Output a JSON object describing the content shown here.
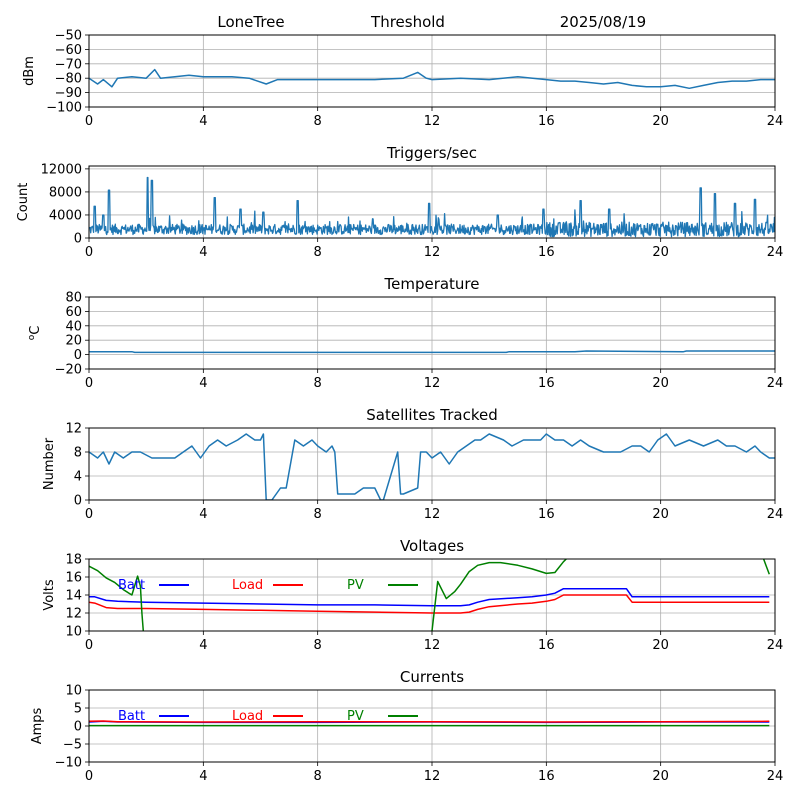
{
  "header": {
    "station": "LoneTree",
    "mode": "Threshold",
    "date": "2025/08/19"
  },
  "chart_data": [
    {
      "id": "signal",
      "type": "line",
      "title": "",
      "ylabel": "dBm",
      "xlim": [
        0,
        24
      ],
      "ylim": [
        -100,
        -50
      ],
      "xticks": [
        0,
        4,
        8,
        12,
        16,
        20,
        24
      ],
      "yticks": [
        -100,
        -90,
        -80,
        -70,
        -60,
        -50
      ],
      "grid": true,
      "series": [
        {
          "color": "#1f77b4",
          "x": [
            0,
            0.3,
            0.5,
            0.8,
            1.0,
            1.5,
            2.0,
            2.3,
            2.5,
            3.0,
            3.5,
            4.0,
            5.0,
            5.6,
            6.2,
            6.6,
            7.0,
            8.0,
            9.0,
            10.0,
            11.0,
            11.5,
            11.8,
            12.0,
            13.0,
            14.0,
            15.0,
            16.0,
            16.5,
            17.0,
            17.5,
            18.0,
            18.5,
            19.0,
            19.5,
            20.0,
            20.5,
            21.0,
            21.5,
            22.0,
            22.5,
            23.0,
            23.5,
            24.0
          ],
          "y": [
            -80,
            -84,
            -81,
            -86,
            -80,
            -79,
            -80,
            -74,
            -80,
            -79,
            -78,
            -79,
            -79,
            -80,
            -84,
            -81,
            -81,
            -81,
            -81,
            -81,
            -80,
            -76,
            -80,
            -81,
            -80,
            -81,
            -79,
            -81,
            -82,
            -82,
            -83,
            -84,
            -83,
            -85,
            -86,
            -86,
            -85,
            -87,
            -85,
            -83,
            -82,
            -82,
            -81,
            -81
          ]
        }
      ]
    },
    {
      "id": "triggers",
      "type": "line",
      "title": "Triggers/sec",
      "ylabel": "Count",
      "xlim": [
        0,
        24
      ],
      "ylim": [
        0,
        12500
      ],
      "xticks": [
        0,
        4,
        8,
        12,
        16,
        20,
        24
      ],
      "yticks": [
        0,
        4000,
        8000,
        12000
      ],
      "grid": true,
      "baseline": 1500,
      "noise": 1800,
      "spikes": [
        {
          "x": 0.2,
          "y": 5500
        },
        {
          "x": 0.5,
          "y": 4000
        },
        {
          "x": 0.7,
          "y": 8300
        },
        {
          "x": 2.05,
          "y": 10500
        },
        {
          "x": 2.2,
          "y": 10000
        },
        {
          "x": 4.4,
          "y": 7000
        },
        {
          "x": 5.3,
          "y": 5000
        },
        {
          "x": 6.1,
          "y": 4500
        },
        {
          "x": 7.3,
          "y": 6500
        },
        {
          "x": 11.9,
          "y": 6000
        },
        {
          "x": 14.3,
          "y": 4000
        },
        {
          "x": 15.9,
          "y": 5000
        },
        {
          "x": 17.2,
          "y": 6500
        },
        {
          "x": 18.2,
          "y": 5000
        },
        {
          "x": 21.4,
          "y": 8700
        },
        {
          "x": 21.9,
          "y": 7700
        },
        {
          "x": 22.6,
          "y": 6000
        },
        {
          "x": 23.3,
          "y": 6700
        }
      ],
      "series": [
        {
          "color": "#1f77b4"
        }
      ]
    },
    {
      "id": "temperature",
      "type": "line",
      "title": "Temperature",
      "ylabel": "°C",
      "ylabel_sup": "o",
      "ylabel_main": "C",
      "xlim": [
        0,
        24
      ],
      "ylim": [
        -20,
        80
      ],
      "xticks": [
        0,
        4,
        8,
        12,
        16,
        20,
        24
      ],
      "yticks": [
        -20,
        0,
        20,
        40,
        60,
        80
      ],
      "grid": true,
      "series": [
        {
          "color": "#1f77b4",
          "x": [
            0,
            1.5,
            1.6,
            14.6,
            14.7,
            17.0,
            17.4,
            20.8,
            20.9,
            24
          ],
          "y": [
            4,
            4,
            3,
            3,
            4,
            4,
            5,
            4,
            5,
            5
          ]
        }
      ]
    },
    {
      "id": "satellites",
      "type": "line",
      "title": "Satellites Tracked",
      "ylabel": "Number",
      "xlim": [
        0,
        24
      ],
      "ylim": [
        0,
        12
      ],
      "xticks": [
        0,
        4,
        8,
        12,
        16,
        20,
        24
      ],
      "yticks": [
        0,
        4,
        8,
        12
      ],
      "grid": true,
      "series": [
        {
          "color": "#1f77b4",
          "x": [
            0,
            0.3,
            0.5,
            0.7,
            0.9,
            1.2,
            1.5,
            1.8,
            2.2,
            3.0,
            3.3,
            3.6,
            3.9,
            4.2,
            4.5,
            4.8,
            5.2,
            5.5,
            5.8,
            6.0,
            6.1,
            6.2,
            6.4,
            6.7,
            6.9,
            7.2,
            7.5,
            7.8,
            8.0,
            8.3,
            8.5,
            8.6,
            8.7,
            9.3,
            9.6,
            10.0,
            10.2,
            10.3,
            10.8,
            10.9,
            11.0,
            11.5,
            11.6,
            11.8,
            12.0,
            12.3,
            12.6,
            12.9,
            13.2,
            13.5,
            13.7,
            14.0,
            14.5,
            14.8,
            15.2,
            15.8,
            16.0,
            16.3,
            16.6,
            16.9,
            17.2,
            17.5,
            18.0,
            18.3,
            18.6,
            19.0,
            19.3,
            19.6,
            19.9,
            20.2,
            20.5,
            21.0,
            21.5,
            22.0,
            22.3,
            22.6,
            23.0,
            23.3,
            23.5,
            23.8,
            24.0
          ],
          "y": [
            8,
            7,
            8,
            6,
            8,
            7,
            8,
            8,
            7,
            7,
            8,
            9,
            7,
            9,
            10,
            9,
            10,
            11,
            10,
            10,
            11,
            0,
            0,
            2,
            2,
            10,
            9,
            10,
            9,
            8,
            9,
            8,
            1,
            1,
            2,
            2,
            0,
            0,
            8,
            1,
            1,
            2,
            8,
            8,
            7,
            8,
            6,
            8,
            9,
            10,
            10,
            11,
            10,
            9,
            10,
            10,
            11,
            10,
            10,
            9,
            10,
            9,
            8,
            8,
            8,
            9,
            9,
            8,
            10,
            11,
            9,
            10,
            9,
            10,
            9,
            9,
            8,
            9,
            8,
            7,
            7
          ]
        }
      ]
    },
    {
      "id": "voltages",
      "type": "line",
      "title": "Voltages",
      "ylabel": "Volts",
      "xlim": [
        0,
        24
      ],
      "ylim": [
        10,
        18
      ],
      "xticks": [
        0,
        4,
        8,
        12,
        16,
        20,
        24
      ],
      "yticks": [
        10,
        12,
        14,
        16,
        18
      ],
      "grid": true,
      "legend": [
        "Batt",
        "Load",
        "PV"
      ],
      "series": [
        {
          "name": "Batt",
          "color": "#0000ff",
          "x": [
            0,
            0.2,
            0.6,
            1.0,
            2.0,
            4.0,
            6.0,
            8.0,
            10.0,
            12.0,
            12.5,
            13.0,
            13.3,
            13.6,
            14.0,
            15.0,
            15.5,
            16.0,
            16.3,
            16.6,
            17.0,
            18.0,
            18.8,
            19.0,
            20.0,
            22.0,
            23.8
          ],
          "y": [
            13.8,
            13.8,
            13.4,
            13.3,
            13.2,
            13.1,
            13.0,
            12.9,
            12.9,
            12.8,
            12.8,
            12.8,
            12.9,
            13.2,
            13.5,
            13.7,
            13.8,
            14.0,
            14.2,
            14.7,
            14.7,
            14.7,
            14.7,
            13.8,
            13.8,
            13.8,
            13.8
          ]
        },
        {
          "name": "Load",
          "color": "#ff0000",
          "x": [
            0,
            0.2,
            0.6,
            1.0,
            2.0,
            4.0,
            6.0,
            8.0,
            10.0,
            12.0,
            12.5,
            13.0,
            13.3,
            13.6,
            14.0,
            15.0,
            15.5,
            16.0,
            16.3,
            16.6,
            17.0,
            18.0,
            18.8,
            19.0,
            20.0,
            22.0,
            23.8
          ],
          "y": [
            13.2,
            13.1,
            12.6,
            12.5,
            12.5,
            12.4,
            12.3,
            12.2,
            12.1,
            12.0,
            12.0,
            12.0,
            12.1,
            12.4,
            12.7,
            13.0,
            13.1,
            13.3,
            13.5,
            14.0,
            14.0,
            14.0,
            14.0,
            13.2,
            13.2,
            13.2,
            13.2
          ]
        },
        {
          "name": "PV",
          "color": "#008000",
          "segments": [
            {
              "x": [
                0,
                0.3,
                0.6,
                0.9,
                1.2,
                1.4,
                1.5,
                1.7,
                1.8,
                1.85,
                1.9
              ],
              "y": [
                17.2,
                16.7,
                15.9,
                15.4,
                14.6,
                14.2,
                14.0,
                16.1,
                15.0,
                12.0,
                10.0
              ]
            },
            {
              "x": [
                12.0,
                12.2,
                12.5,
                12.8,
                13.0,
                13.3,
                13.6,
                14.0,
                14.4,
                15.0,
                15.5,
                16.0,
                16.3,
                16.6,
                16.7
              ],
              "y": [
                10.0,
                15.5,
                13.6,
                14.4,
                15.2,
                16.6,
                17.3,
                17.6,
                17.6,
                17.3,
                16.9,
                16.4,
                16.5,
                17.7,
                18.0
              ]
            },
            {
              "x": [
                23.6,
                23.8
              ],
              "y": [
                18.0,
                16.3
              ]
            }
          ]
        }
      ]
    },
    {
      "id": "currents",
      "type": "line",
      "title": "Currents",
      "ylabel": "Amps",
      "xlim": [
        0,
        24
      ],
      "ylim": [
        -10,
        10
      ],
      "xticks": [
        0,
        4,
        8,
        12,
        16,
        20,
        24
      ],
      "yticks": [
        -10,
        -5,
        0,
        5,
        10
      ],
      "grid": true,
      "legend": [
        "Batt",
        "Load",
        "PV"
      ],
      "series": [
        {
          "name": "Batt",
          "color": "#0000ff",
          "x": [
            0,
            0.5,
            1.0,
            4.0,
            8.0,
            12.0,
            16.0,
            20.0,
            23.8
          ],
          "y": [
            1.1,
            1.3,
            1.1,
            1.0,
            1.0,
            1.1,
            1.0,
            1.1,
            1.1
          ]
        },
        {
          "name": "Load",
          "color": "#ff0000",
          "x": [
            0,
            0.5,
            1.0,
            4.0,
            8.0,
            12.0,
            16.0,
            20.0,
            23.8
          ],
          "y": [
            1.3,
            1.4,
            1.2,
            1.1,
            1.2,
            1.2,
            1.1,
            1.2,
            1.3
          ]
        },
        {
          "name": "PV",
          "color": "#008000",
          "x": [
            0,
            23.8
          ],
          "y": [
            0.1,
            0.1
          ]
        }
      ]
    }
  ]
}
